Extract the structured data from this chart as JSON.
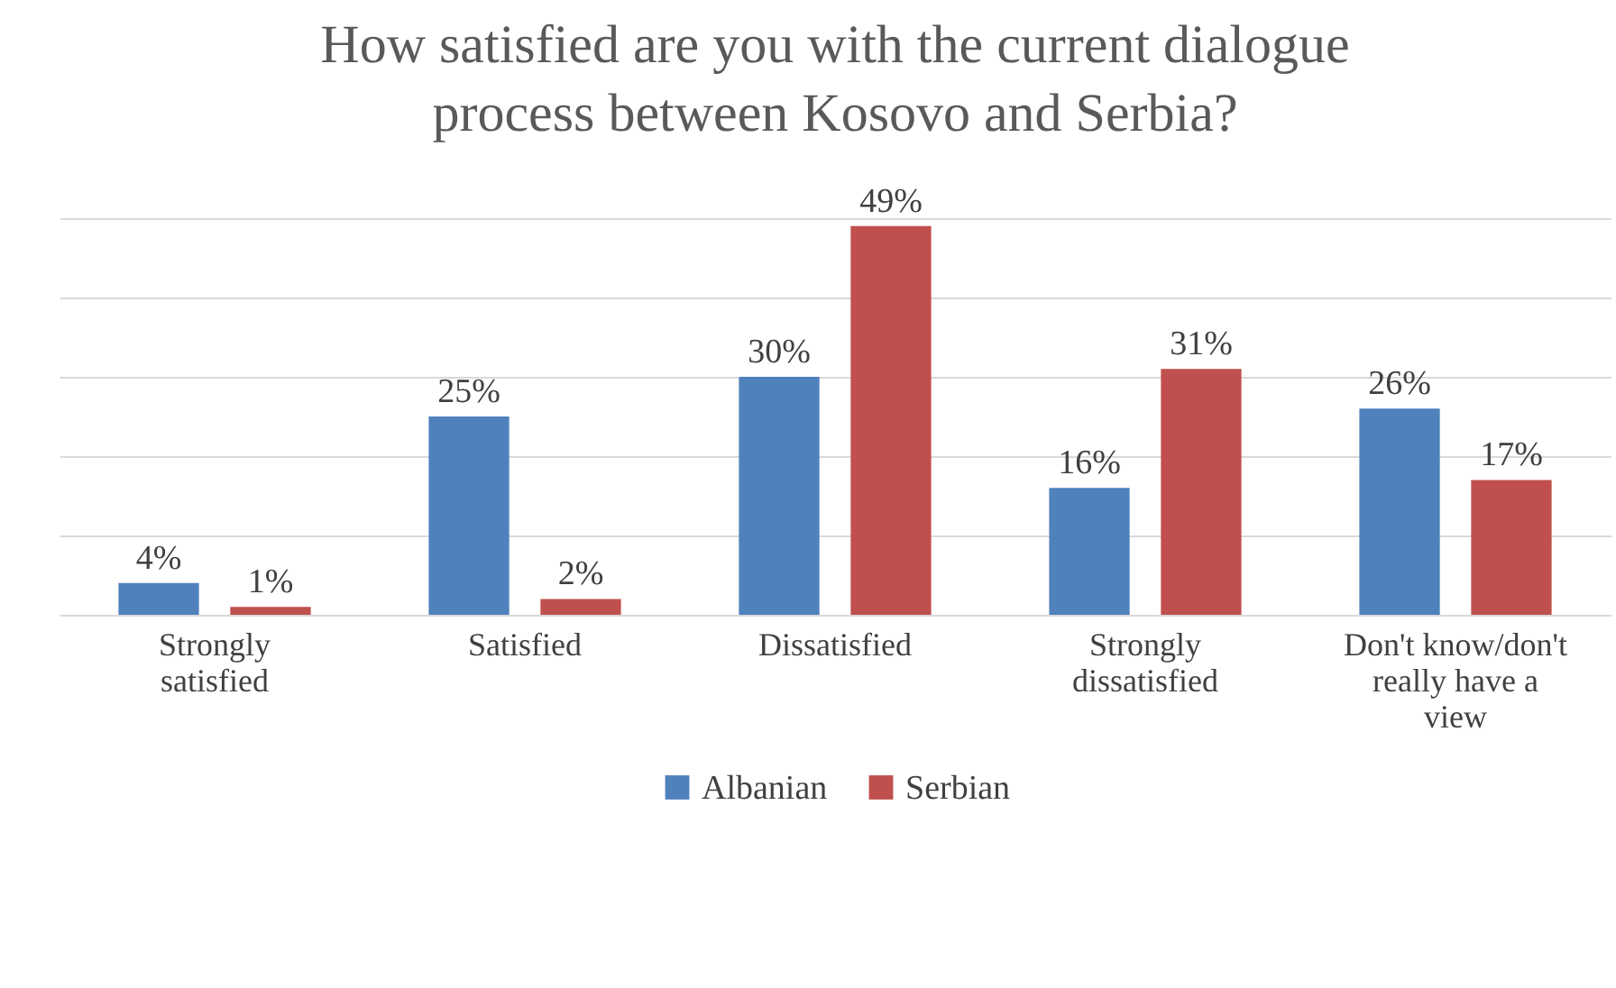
{
  "chart_data": {
    "type": "bar",
    "title": "How satisfied are you with the current dialogue process between Kosovo and Serbia?",
    "categories": [
      "Strongly satisfied",
      "Satisfied",
      "Dissatisfied",
      "Strongly dissatisfied",
      "Don't know/don't really have a view"
    ],
    "series": [
      {
        "name": "Albanian",
        "color": "#4f81bd",
        "values": [
          4,
          25,
          30,
          16,
          26
        ],
        "value_labels": [
          "4%",
          "25%",
          "30%",
          "16%",
          "26%"
        ]
      },
      {
        "name": "Serbian",
        "color": "#c0504d",
        "values": [
          1,
          2,
          49,
          31,
          17
        ],
        "value_labels": [
          "1%",
          "2%",
          "49%",
          "31%",
          "17%"
        ]
      }
    ],
    "tick_labels": "x",
    "grid": "y",
    "legend": "bottom"
  }
}
